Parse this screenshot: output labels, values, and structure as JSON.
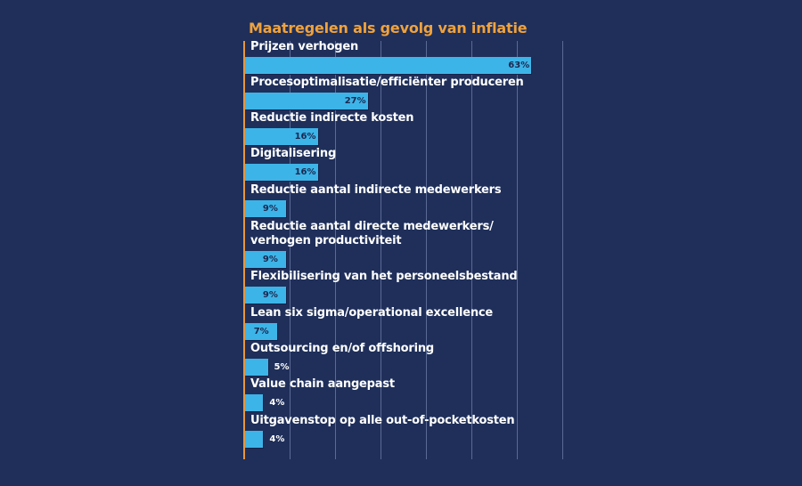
{
  "chart_data": {
    "type": "bar",
    "orientation": "horizontal",
    "title": "Maatregelen als gevolg van inflatie",
    "categories": [
      "Prijzen verhogen",
      "Procesoptimalisatie/efficiënter produceren",
      "Reductie indirecte kosten",
      "Digitalisering",
      "Reductie aantal indirecte medewerkers",
      "Reductie aantal directe medewerkers/\nverhogen productiviteit",
      "Flexibilisering van het personeelsbestand",
      "Lean six sigma/operational excellence",
      "Outsourcing en/of offshoring",
      "Value chain aangepast",
      "Uitgavenstop op alle out-of-pocketkosten"
    ],
    "values": [
      63,
      27,
      16,
      16,
      9,
      9,
      9,
      7,
      5,
      4,
      4
    ],
    "labels": [
      "63%",
      "27%",
      "16%",
      "16%",
      "9%",
      "9%",
      "9%",
      "7%",
      "5%",
      "4%",
      "4%"
    ],
    "xlim": [
      0,
      70
    ],
    "grid": true,
    "colors": {
      "background": "#1f2f5a",
      "bar": "#3db4e8",
      "title": "#f0a23c",
      "axis": "#e8963a"
    }
  }
}
